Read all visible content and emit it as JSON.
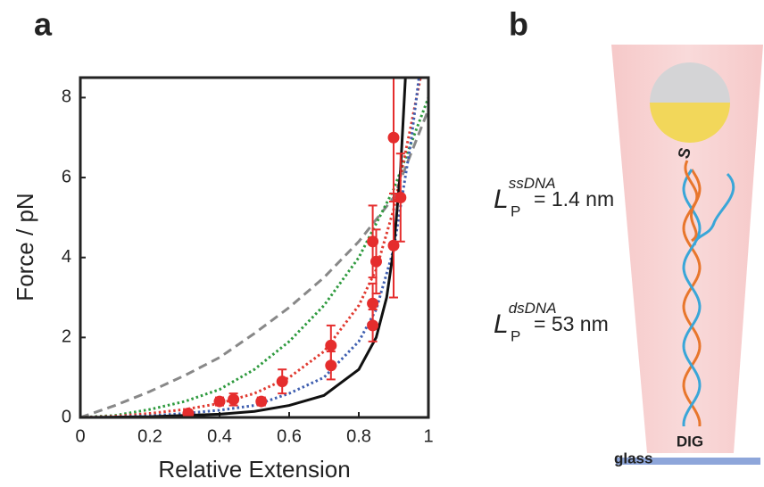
{
  "chart_data": {
    "type": "scatter",
    "panel_label": "a",
    "x_label": "Relative Extension",
    "y_label": "Force / pN",
    "xlim": [
      0,
      1
    ],
    "ylim": [
      0,
      8.5
    ],
    "xticks": [
      0,
      0.2,
      0.4,
      0.6,
      0.8,
      1
    ],
    "yticks": [
      0,
      2,
      4,
      6,
      8
    ],
    "series": [
      {
        "type": "line",
        "color": "#888888",
        "style": "dashed",
        "x": [
          0,
          0.1,
          0.2,
          0.3,
          0.4,
          0.5,
          0.6,
          0.7,
          0.8,
          0.9,
          1
        ],
        "values": [
          0,
          0.3,
          0.65,
          1.05,
          1.5,
          2.1,
          2.75,
          3.5,
          4.4,
          5.5,
          7.7
        ]
      },
      {
        "type": "line",
        "color": "#2e9a3e",
        "style": "dotted",
        "x": [
          0,
          0.1,
          0.2,
          0.3,
          0.4,
          0.5,
          0.6,
          0.7,
          0.8,
          0.9,
          1
        ],
        "values": [
          0,
          0.05,
          0.2,
          0.4,
          0.7,
          1.2,
          1.9,
          2.8,
          4.0,
          5.7,
          8.0
        ]
      },
      {
        "type": "line",
        "color": "#e03a30",
        "style": "dotted",
        "x": [
          0,
          0.1,
          0.2,
          0.3,
          0.4,
          0.5,
          0.6,
          0.7,
          0.8,
          0.85,
          0.9,
          0.95,
          1
        ],
        "values": [
          0,
          0.03,
          0.1,
          0.2,
          0.35,
          0.6,
          1.0,
          1.65,
          2.8,
          3.7,
          5.2,
          7.3,
          9.5
        ]
      },
      {
        "type": "line",
        "color": "#3f5fb0",
        "style": "dotted",
        "x": [
          0,
          0.1,
          0.2,
          0.3,
          0.4,
          0.5,
          0.6,
          0.7,
          0.8,
          0.85,
          0.9,
          0.95,
          0.98
        ],
        "values": [
          0,
          0.01,
          0.04,
          0.1,
          0.18,
          0.3,
          0.6,
          1.0,
          1.9,
          2.7,
          4.2,
          6.9,
          9.0
        ]
      },
      {
        "type": "line",
        "color": "#111111",
        "style": "solid",
        "x": [
          0,
          0.2,
          0.4,
          0.5,
          0.6,
          0.7,
          0.8,
          0.85,
          0.88,
          0.9,
          0.92,
          0.94
        ],
        "values": [
          0,
          0.02,
          0.08,
          0.15,
          0.3,
          0.55,
          1.2,
          2.0,
          3.0,
          4.2,
          6.2,
          9.5
        ]
      },
      {
        "type": "scatter",
        "color": "#e52d2d",
        "x": [
          0.31,
          0.4,
          0.44,
          0.52,
          0.58,
          0.72,
          0.72,
          0.84,
          0.85,
          0.84,
          0.84,
          0.9,
          0.9,
          0.92
        ],
        "values": [
          0.1,
          0.4,
          0.45,
          0.4,
          0.9,
          1.8,
          1.3,
          4.4,
          3.9,
          2.85,
          2.3,
          7.0,
          4.3,
          5.5
        ],
        "errors": [
          0.05,
          0.1,
          0.15,
          0.1,
          0.3,
          0.5,
          0.35,
          0.9,
          0.8,
          0.5,
          0.4,
          1.6,
          1.3,
          1.1
        ]
      }
    ]
  },
  "diagram": {
    "panel_label": "b",
    "persistence": [
      {
        "symbol": "L",
        "sub": "P",
        "sup": "ssDNA",
        "text": "= 1.4 nm"
      },
      {
        "symbol": "L",
        "sub": "P",
        "sup": "dsDNA",
        "text": "= 53 nm"
      }
    ],
    "thiol": "S",
    "anchor": "DIG",
    "surface": "glass"
  }
}
